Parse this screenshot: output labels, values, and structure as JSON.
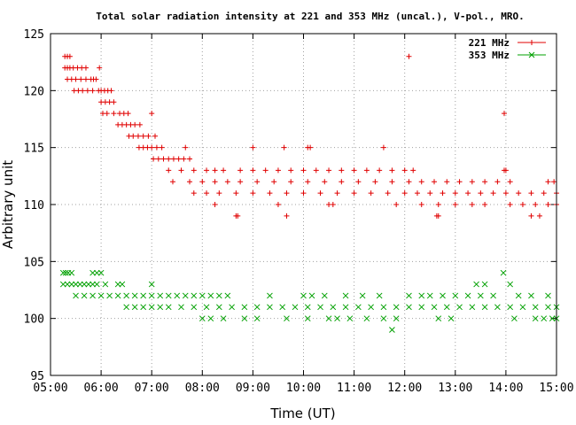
{
  "chart_data": {
    "type": "scatter",
    "title": "Total solar radiation intensity at 221 and 353 MHz (uncal.), V-pol., MRO.",
    "xlabel": "Time (UT)",
    "ylabel": "Arbitrary unit",
    "xlim": [
      "05:00",
      "15:00"
    ],
    "ylim": [
      95,
      125
    ],
    "x_ticks": [
      "05:00",
      "06:00",
      "07:00",
      "08:00",
      "09:00",
      "10:00",
      "11:00",
      "12:00",
      "13:00",
      "14:00",
      "15:00"
    ],
    "y_ticks": [
      95,
      100,
      105,
      110,
      115,
      120,
      125
    ],
    "grid": true,
    "legend_position": "top-right",
    "series": [
      {
        "name": "221 MHz",
        "color": "#e00000",
        "marker": "plus",
        "points": [
          [
            "05:17",
            123
          ],
          [
            "05:20",
            123
          ],
          [
            "05:23",
            123
          ],
          [
            "05:17",
            122
          ],
          [
            "05:20",
            122
          ],
          [
            "05:23",
            122
          ],
          [
            "05:27",
            122
          ],
          [
            "05:32",
            122
          ],
          [
            "05:37",
            122
          ],
          [
            "05:42",
            122
          ],
          [
            "05:20",
            121
          ],
          [
            "05:25",
            121
          ],
          [
            "05:30",
            121
          ],
          [
            "05:36",
            121
          ],
          [
            "05:42",
            121
          ],
          [
            "05:48",
            121
          ],
          [
            "05:51",
            121
          ],
          [
            "05:54",
            121
          ],
          [
            "05:28",
            120
          ],
          [
            "05:33",
            120
          ],
          [
            "05:38",
            120
          ],
          [
            "05:44",
            120
          ],
          [
            "05:50",
            120
          ],
          [
            "05:57",
            120
          ],
          [
            "06:00",
            120
          ],
          [
            "06:04",
            120
          ],
          [
            "06:08",
            120
          ],
          [
            "06:12",
            120
          ],
          [
            "05:58",
            122
          ],
          [
            "06:00",
            119
          ],
          [
            "06:05",
            119
          ],
          [
            "06:10",
            119
          ],
          [
            "06:15",
            119
          ],
          [
            "06:02",
            118
          ],
          [
            "06:07",
            118
          ],
          [
            "06:15",
            118
          ],
          [
            "06:22",
            118
          ],
          [
            "06:27",
            118
          ],
          [
            "06:32",
            118
          ],
          [
            "06:20",
            117
          ],
          [
            "06:25",
            117
          ],
          [
            "06:30",
            117
          ],
          [
            "06:35",
            117
          ],
          [
            "06:40",
            117
          ],
          [
            "06:46",
            117
          ],
          [
            "06:33",
            116
          ],
          [
            "06:38",
            116
          ],
          [
            "06:44",
            116
          ],
          [
            "06:50",
            116
          ],
          [
            "06:56",
            116
          ],
          [
            "07:04",
            116
          ],
          [
            "06:45",
            115
          ],
          [
            "06:50",
            115
          ],
          [
            "06:55",
            115
          ],
          [
            "07:00",
            115
          ],
          [
            "07:06",
            115
          ],
          [
            "07:12",
            115
          ],
          [
            "07:40",
            115
          ],
          [
            "07:00",
            118
          ],
          [
            "07:02",
            114
          ],
          [
            "07:08",
            114
          ],
          [
            "07:14",
            114
          ],
          [
            "07:20",
            114
          ],
          [
            "07:26",
            114
          ],
          [
            "07:32",
            114
          ],
          [
            "07:38",
            114
          ],
          [
            "07:45",
            114
          ],
          [
            "07:20",
            113
          ],
          [
            "07:35",
            113
          ],
          [
            "07:50",
            113
          ],
          [
            "08:05",
            113
          ],
          [
            "08:15",
            113
          ],
          [
            "08:25",
            113
          ],
          [
            "08:45",
            113
          ],
          [
            "09:00",
            113
          ],
          [
            "09:15",
            113
          ],
          [
            "09:30",
            113
          ],
          [
            "09:45",
            113
          ],
          [
            "10:00",
            113
          ],
          [
            "10:15",
            113
          ],
          [
            "10:30",
            113
          ],
          [
            "10:45",
            113
          ],
          [
            "11:00",
            113
          ],
          [
            "11:15",
            113
          ],
          [
            "11:30",
            113
          ],
          [
            "11:45",
            113
          ],
          [
            "12:00",
            113
          ],
          [
            "12:10",
            113
          ],
          [
            "07:25",
            112
          ],
          [
            "07:45",
            112
          ],
          [
            "08:00",
            112
          ],
          [
            "08:15",
            112
          ],
          [
            "08:30",
            112
          ],
          [
            "08:45",
            112
          ],
          [
            "09:05",
            112
          ],
          [
            "09:25",
            112
          ],
          [
            "09:45",
            112
          ],
          [
            "10:05",
            112
          ],
          [
            "10:25",
            112
          ],
          [
            "10:45",
            112
          ],
          [
            "11:05",
            112
          ],
          [
            "11:25",
            112
          ],
          [
            "11:45",
            112
          ],
          [
            "12:05",
            112
          ],
          [
            "12:20",
            112
          ],
          [
            "12:35",
            112
          ],
          [
            "12:50",
            112
          ],
          [
            "13:05",
            112
          ],
          [
            "13:20",
            112
          ],
          [
            "13:35",
            112
          ],
          [
            "13:50",
            112
          ],
          [
            "14:05",
            112
          ],
          [
            "14:50",
            112
          ],
          [
            "14:57",
            112
          ],
          [
            "07:50",
            111
          ],
          [
            "08:05",
            111
          ],
          [
            "08:20",
            111
          ],
          [
            "08:40",
            111
          ],
          [
            "09:00",
            111
          ],
          [
            "09:20",
            111
          ],
          [
            "09:40",
            111
          ],
          [
            "10:00",
            111
          ],
          [
            "10:20",
            111
          ],
          [
            "10:40",
            111
          ],
          [
            "11:00",
            111
          ],
          [
            "11:20",
            111
          ],
          [
            "11:40",
            111
          ],
          [
            "12:00",
            111
          ],
          [
            "12:15",
            111
          ],
          [
            "12:30",
            111
          ],
          [
            "12:45",
            111
          ],
          [
            "13:00",
            111
          ],
          [
            "13:15",
            111
          ],
          [
            "13:30",
            111
          ],
          [
            "13:45",
            111
          ],
          [
            "14:00",
            111
          ],
          [
            "14:15",
            111
          ],
          [
            "14:30",
            111
          ],
          [
            "14:45",
            111
          ],
          [
            "15:00",
            111
          ],
          [
            "08:15",
            110
          ],
          [
            "09:30",
            110
          ],
          [
            "10:30",
            110
          ],
          [
            "10:35",
            110
          ],
          [
            "11:50",
            110
          ],
          [
            "12:20",
            110
          ],
          [
            "12:40",
            110
          ],
          [
            "13:00",
            110
          ],
          [
            "13:20",
            110
          ],
          [
            "13:35",
            110
          ],
          [
            "14:05",
            110
          ],
          [
            "14:20",
            110
          ],
          [
            "14:35",
            110
          ],
          [
            "14:50",
            110
          ],
          [
            "15:00",
            110
          ],
          [
            "08:40",
            109
          ],
          [
            "08:42",
            109
          ],
          [
            "09:40",
            109
          ],
          [
            "12:38",
            109
          ],
          [
            "12:40",
            109
          ],
          [
            "14:30",
            109
          ],
          [
            "14:40",
            109
          ],
          [
            "09:00",
            115
          ],
          [
            "09:37",
            115
          ],
          [
            "10:05",
            115
          ],
          [
            "10:08",
            115
          ],
          [
            "11:35",
            115
          ],
          [
            "12:05",
            123
          ],
          [
            "13:58",
            118
          ],
          [
            "13:58",
            113
          ],
          [
            "14:00",
            113
          ]
        ]
      },
      {
        "name": "353 MHz",
        "color": "#00a000",
        "marker": "cross",
        "points": [
          [
            "05:15",
            104
          ],
          [
            "05:18",
            104
          ],
          [
            "05:21",
            104
          ],
          [
            "05:25",
            104
          ],
          [
            "05:50",
            104
          ],
          [
            "05:55",
            104
          ],
          [
            "06:00",
            104
          ],
          [
            "13:57",
            104
          ],
          [
            "05:15",
            103
          ],
          [
            "05:20",
            103
          ],
          [
            "05:25",
            103
          ],
          [
            "05:30",
            103
          ],
          [
            "05:35",
            103
          ],
          [
            "05:40",
            103
          ],
          [
            "05:45",
            103
          ],
          [
            "05:50",
            103
          ],
          [
            "05:55",
            103
          ],
          [
            "06:05",
            103
          ],
          [
            "06:20",
            103
          ],
          [
            "06:25",
            103
          ],
          [
            "07:00",
            103
          ],
          [
            "13:25",
            103
          ],
          [
            "13:35",
            103
          ],
          [
            "14:05",
            103
          ],
          [
            "05:30",
            102
          ],
          [
            "05:40",
            102
          ],
          [
            "05:50",
            102
          ],
          [
            "06:00",
            102
          ],
          [
            "06:10",
            102
          ],
          [
            "06:20",
            102
          ],
          [
            "06:30",
            102
          ],
          [
            "06:40",
            102
          ],
          [
            "06:50",
            102
          ],
          [
            "07:00",
            102
          ],
          [
            "07:10",
            102
          ],
          [
            "07:20",
            102
          ],
          [
            "07:30",
            102
          ],
          [
            "07:40",
            102
          ],
          [
            "07:50",
            102
          ],
          [
            "08:00",
            102
          ],
          [
            "08:10",
            102
          ],
          [
            "08:20",
            102
          ],
          [
            "08:30",
            102
          ],
          [
            "09:20",
            102
          ],
          [
            "10:00",
            102
          ],
          [
            "10:10",
            102
          ],
          [
            "10:25",
            102
          ],
          [
            "10:50",
            102
          ],
          [
            "11:10",
            102
          ],
          [
            "11:30",
            102
          ],
          [
            "12:05",
            102
          ],
          [
            "12:20",
            102
          ],
          [
            "12:30",
            102
          ],
          [
            "12:45",
            102
          ],
          [
            "13:00",
            102
          ],
          [
            "13:15",
            102
          ],
          [
            "13:30",
            102
          ],
          [
            "13:45",
            102
          ],
          [
            "14:15",
            102
          ],
          [
            "14:30",
            102
          ],
          [
            "14:50",
            102
          ],
          [
            "06:30",
            101
          ],
          [
            "06:40",
            101
          ],
          [
            "06:50",
            101
          ],
          [
            "07:00",
            101
          ],
          [
            "07:10",
            101
          ],
          [
            "07:20",
            101
          ],
          [
            "07:35",
            101
          ],
          [
            "07:50",
            101
          ],
          [
            "08:05",
            101
          ],
          [
            "08:20",
            101
          ],
          [
            "08:35",
            101
          ],
          [
            "08:50",
            101
          ],
          [
            "09:05",
            101
          ],
          [
            "09:20",
            101
          ],
          [
            "09:35",
            101
          ],
          [
            "09:50",
            101
          ],
          [
            "10:05",
            101
          ],
          [
            "10:20",
            101
          ],
          [
            "10:35",
            101
          ],
          [
            "10:50",
            101
          ],
          [
            "11:05",
            101
          ],
          [
            "11:20",
            101
          ],
          [
            "11:35",
            101
          ],
          [
            "11:50",
            101
          ],
          [
            "12:05",
            101
          ],
          [
            "12:20",
            101
          ],
          [
            "12:35",
            101
          ],
          [
            "12:50",
            101
          ],
          [
            "13:05",
            101
          ],
          [
            "13:20",
            101
          ],
          [
            "13:35",
            101
          ],
          [
            "13:50",
            101
          ],
          [
            "14:05",
            101
          ],
          [
            "14:20",
            101
          ],
          [
            "14:35",
            101
          ],
          [
            "14:50",
            101
          ],
          [
            "15:00",
            101
          ],
          [
            "08:00",
            100
          ],
          [
            "08:10",
            100
          ],
          [
            "08:25",
            100
          ],
          [
            "08:50",
            100
          ],
          [
            "09:05",
            100
          ],
          [
            "09:40",
            100
          ],
          [
            "10:05",
            100
          ],
          [
            "10:30",
            100
          ],
          [
            "10:40",
            100
          ],
          [
            "10:55",
            100
          ],
          [
            "11:15",
            100
          ],
          [
            "11:35",
            100
          ],
          [
            "11:50",
            100
          ],
          [
            "12:40",
            100
          ],
          [
            "12:55",
            100
          ],
          [
            "14:10",
            100
          ],
          [
            "14:35",
            100
          ],
          [
            "14:45",
            100
          ],
          [
            "14:55",
            100
          ],
          [
            "15:00",
            100
          ],
          [
            "11:45",
            99
          ]
        ]
      }
    ]
  }
}
